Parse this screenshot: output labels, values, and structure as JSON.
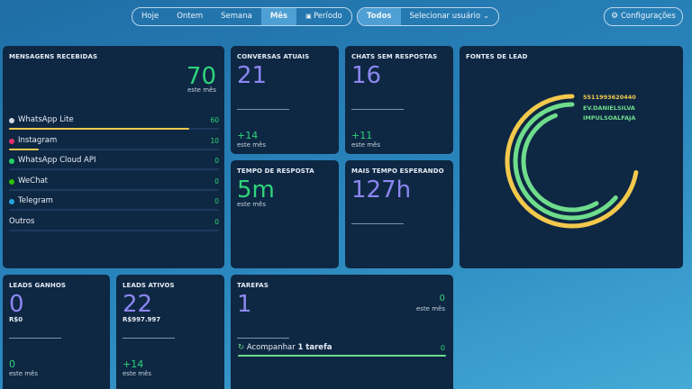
{
  "toolbar": {
    "periods": [
      "Hoje",
      "Ontem",
      "Semana",
      "Mês",
      "Período"
    ],
    "active_period": "Mês",
    "users": [
      "Todos",
      "Selecionar usuário"
    ],
    "active_user": "Todos",
    "settings": "Configurações"
  },
  "messages": {
    "title": "MENSAGENS RECEBIDAS",
    "total": 70,
    "total_label": "este mês",
    "bar_color": "#f2c94c",
    "rows": [
      {
        "name": "WhatsApp Lite",
        "value": 60,
        "icon_color": "#cfd8e3"
      },
      {
        "name": "Instagram",
        "value": 10,
        "icon_color": "#e1306c"
      },
      {
        "name": "WhatsApp Cloud API",
        "value": 0,
        "icon_color": "#25d366"
      },
      {
        "name": "WeChat",
        "value": 0,
        "icon_color": "#2dc100"
      },
      {
        "name": "Telegram",
        "value": 0,
        "icon_color": "#2aa3e0"
      },
      {
        "name": "Outros",
        "value": 0,
        "icon_color": null
      }
    ]
  },
  "current_chats": {
    "title": "CONVERSAS ATUAIS",
    "value": 21,
    "delta": "+14",
    "delta_label": "este mês"
  },
  "unanswered_chats": {
    "title": "CHATS SEM RESPOSTAS",
    "value": 16,
    "delta": "+11",
    "delta_label": "este mês"
  },
  "response_time": {
    "title": "TEMPO DE RESPOSTA",
    "value": "5m",
    "value_label": "este mês"
  },
  "longest_wait": {
    "title": "MAIS TEMPO ESPERANDO",
    "value": "127h"
  },
  "lead_sources": {
    "title": "FONTES DE LEAD",
    "sources": [
      {
        "name": "5511993620440",
        "color": "#f2c94c"
      },
      {
        "name": "EV.DANIELSILVA",
        "color": "#6fdc8c"
      },
      {
        "name": "IMPULSOALFAJA",
        "color": "#6fdc8c"
      }
    ]
  },
  "leads_won": {
    "title": "LEADS GANHOS",
    "value": 0,
    "amount": "R$0",
    "delta": 0,
    "delta_label": "este mês"
  },
  "active_leads": {
    "title": "LEADS ATIVOS",
    "value": 22,
    "amount": "R$997.997",
    "delta": "+14",
    "delta_label": "este mês"
  },
  "tasks": {
    "title": "TAREFAS",
    "value": 1,
    "side_value": 0,
    "side_label": "este mês",
    "task_prefix": "Acompanhar",
    "task_count": "1 tarefa",
    "task_value": 0
  }
}
